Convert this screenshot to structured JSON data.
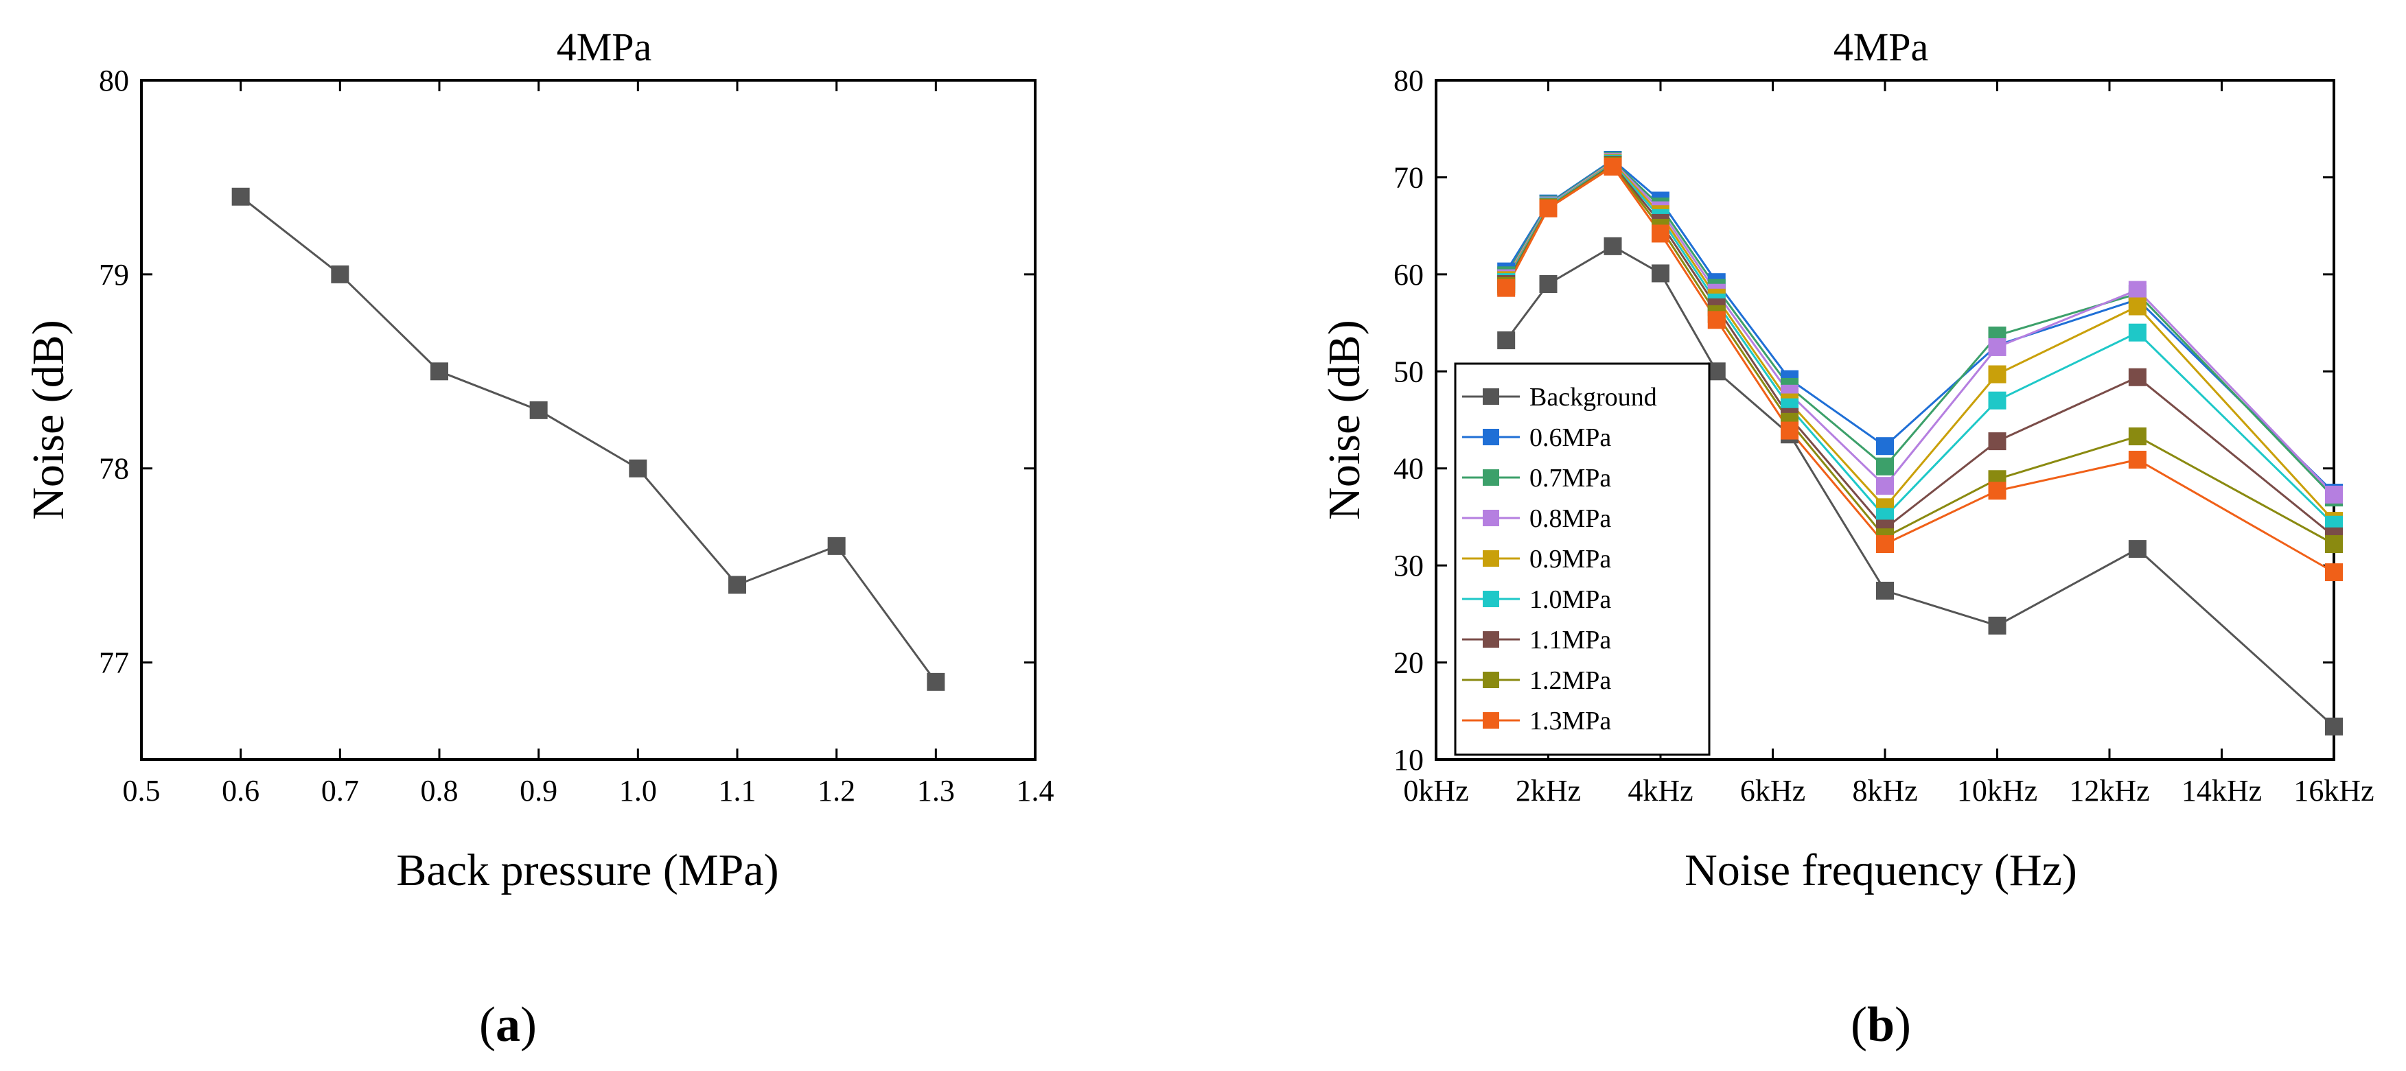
{
  "chart_data": [
    {
      "type": "line",
      "title": "4MPa",
      "xlabel": "Back pressure (MPa)",
      "ylabel": "Noise (dB)",
      "xlim": [
        0.5,
        1.4
      ],
      "ylim": [
        76.5,
        80
      ],
      "xticks": [
        "0.5",
        "0.6",
        "0.7",
        "0.8",
        "0.9",
        "1.0",
        "1.1",
        "1.2",
        "1.3",
        "1.4"
      ],
      "yticks": [
        "77",
        "78",
        "79",
        "80"
      ],
      "grid": false,
      "series": [
        {
          "name": "Noise",
          "color": "#555555",
          "x": [
            0.6,
            0.7,
            0.8,
            0.9,
            1.0,
            1.1,
            1.2,
            1.3
          ],
          "values": [
            79.4,
            79.0,
            78.5,
            78.3,
            78.0,
            77.4,
            77.6,
            76.9
          ]
        }
      ],
      "panel_label": {
        "open": "(",
        "letter": "a",
        "close": ")"
      }
    },
    {
      "type": "line",
      "title": "4MPa",
      "xlabel": "Noise frequency (Hz)",
      "ylabel": "Noise (dB)",
      "xlim": [
        0,
        16
      ],
      "ylim": [
        10,
        80
      ],
      "xticks": [
        "0kHz",
        "2kHz",
        "4kHz",
        "6kHz",
        "8kHz",
        "10kHz",
        "12kHz",
        "14kHz",
        "16kHz"
      ],
      "yticks": [
        "10",
        "20",
        "30",
        "40",
        "50",
        "60",
        "70",
        "80"
      ],
      "grid": false,
      "legend_position": "left",
      "x": [
        1.25,
        2,
        3.15,
        4,
        5,
        6.3,
        8,
        10,
        12.5,
        16
      ],
      "series": [
        {
          "name": "Background",
          "color": "#555555",
          "values": [
            53.2,
            59.0,
            62.9,
            60.1,
            50.0,
            43.5,
            27.4,
            23.8,
            31.7,
            13.4
          ]
        },
        {
          "name": "0.6MPa",
          "color": "#1f6fd6",
          "values": [
            60.3,
            67.3,
            71.8,
            67.6,
            59.2,
            49.2,
            42.3,
            52.7,
            57.4,
            37.5
          ]
        },
        {
          "name": "0.7MPa",
          "color": "#3ca06a",
          "values": [
            59.9,
            67.2,
            71.7,
            67.0,
            58.6,
            48.4,
            40.2,
            53.7,
            58.0,
            37.0
          ]
        },
        {
          "name": "0.8MPa",
          "color": "#b57fe0",
          "values": [
            59.6,
            67.1,
            71.6,
            66.6,
            58.1,
            47.7,
            38.2,
            52.5,
            58.4,
            37.3
          ]
        },
        {
          "name": "0.9MPa",
          "color": "#c9a00a",
          "values": [
            59.4,
            67.0,
            71.5,
            66.2,
            57.6,
            46.8,
            36.0,
            49.7,
            56.7,
            34.6
          ]
        },
        {
          "name": "1.0MPa",
          "color": "#1ec8c8",
          "values": [
            59.2,
            67.0,
            71.4,
            65.8,
            57.1,
            46.3,
            35.0,
            47.0,
            54.0,
            34.2
          ]
        },
        {
          "name": "1.1MPa",
          "color": "#7a4c48",
          "values": [
            59.0,
            66.9,
            71.3,
            65.3,
            56.6,
            45.3,
            33.8,
            42.8,
            49.4,
            33.0
          ]
        },
        {
          "name": "1.2MPa",
          "color": "#8a8a10",
          "values": [
            58.8,
            66.9,
            71.2,
            64.8,
            55.9,
            44.8,
            32.9,
            38.9,
            43.3,
            32.2
          ]
        },
        {
          "name": "1.3MPa",
          "color": "#f06018",
          "values": [
            58.6,
            66.8,
            71.1,
            64.2,
            55.3,
            43.9,
            32.2,
            37.7,
            40.9,
            29.3
          ]
        }
      ],
      "panel_label": {
        "open": "(",
        "letter": "b",
        "close": ")"
      }
    }
  ]
}
